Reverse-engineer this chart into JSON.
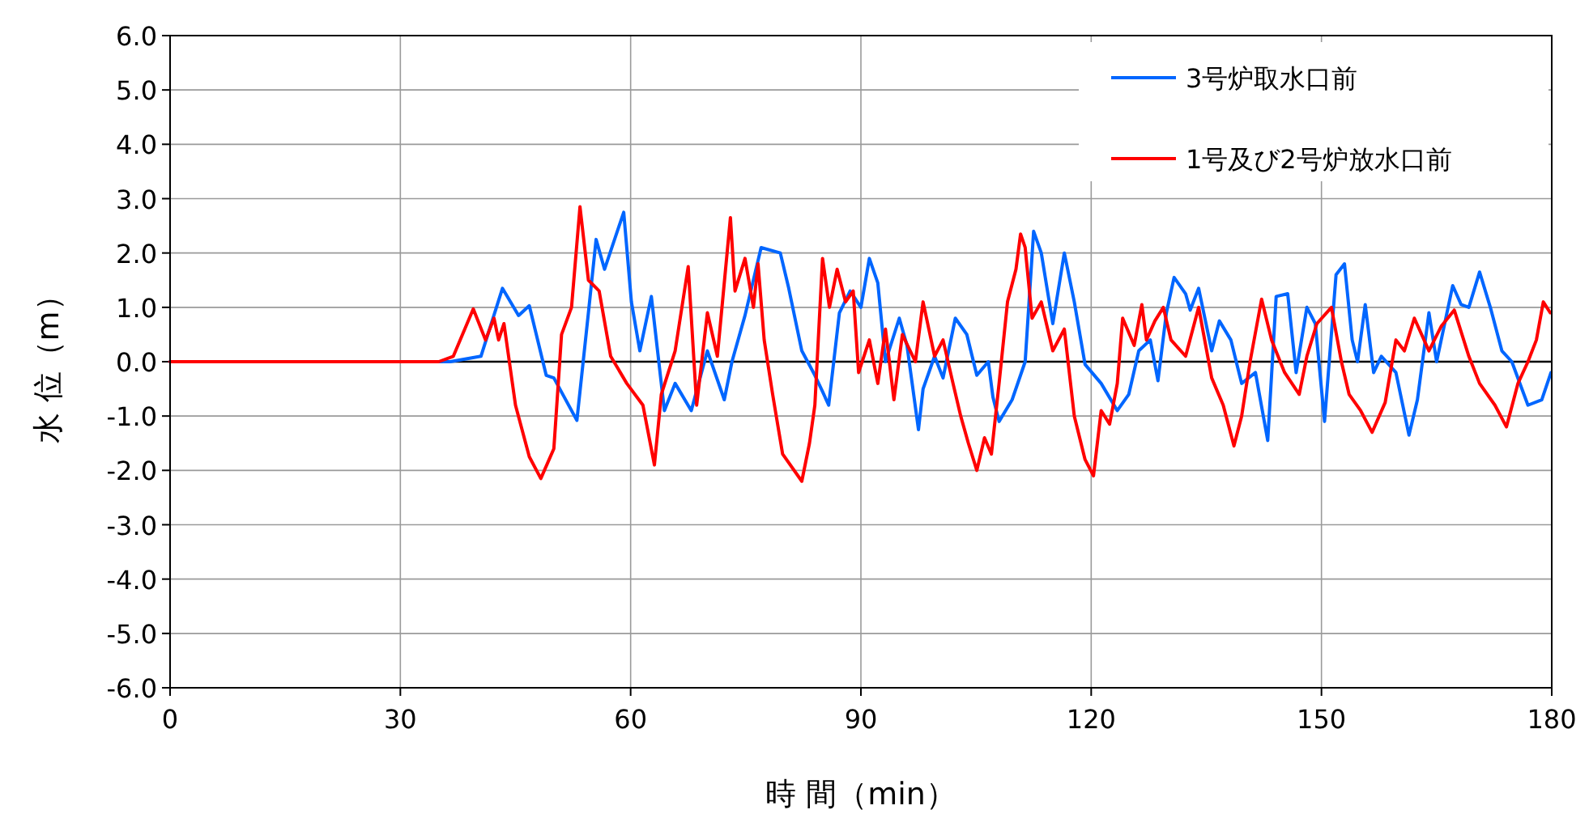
{
  "chart_data": {
    "type": "line",
    "xlabel": "時 間（min）",
    "ylabel": "水 位（m）",
    "xlim": [
      0,
      180
    ],
    "xticks": [
      0,
      30,
      60,
      90,
      120,
      150,
      180
    ],
    "ylim": [
      -6,
      6
    ],
    "yticks": [
      {
        "value": -6,
        "label": "-6.0"
      },
      {
        "value": -5,
        "label": "-5.0"
      },
      {
        "value": -4,
        "label": "-4.0"
      },
      {
        "value": -3,
        "label": "-3.0"
      },
      {
        "value": -2,
        "label": "-2.0"
      },
      {
        "value": -1,
        "label": "-1.0"
      },
      {
        "value": 0,
        "label": "0.0"
      },
      {
        "value": 1,
        "label": "1.0"
      },
      {
        "value": 2,
        "label": "2.0"
      },
      {
        "value": 3,
        "label": "3.0"
      },
      {
        "value": 4,
        "label": "4.0"
      },
      {
        "value": 5,
        "label": "5.0"
      },
      {
        "value": 6,
        "label": "6.0"
      }
    ],
    "grid": true,
    "legend": "top right",
    "line_style": "solid",
    "ref_lines": [
      {
        "axis": "y",
        "value": 0,
        "color": "#000000"
      }
    ],
    "series": [
      {
        "name": "3号炉取水口前",
        "color": "#0066ff",
        "x": [
          0,
          36.5,
          40.5,
          43.3,
          45.4,
          46.8,
          49,
          50,
          53,
          54.5,
          55.5,
          56.6,
          59.1,
          60.1,
          61.2,
          62.7,
          64.4,
          65.8,
          67.9,
          70,
          72.2,
          73.2,
          74.9,
          77,
          79.5,
          80.6,
          82.3,
          84,
          85,
          85.8,
          87.2,
          88.6,
          90,
          91.1,
          92.2,
          93.2,
          95,
          96,
          97.5,
          98.1,
          99.6,
          100.7,
          102.3,
          103.8,
          105.1,
          106.6,
          107.2,
          108,
          109.7,
          111.4,
          112.5,
          113.5,
          115,
          116.5,
          117.8,
          119.2,
          121.3,
          123.4,
          124.9,
          126.2,
          127.7,
          128.7,
          129.8,
          130.8,
          132.3,
          132.9,
          134,
          135.7,
          136.7,
          138.2,
          139.6,
          141.4,
          143,
          144.1,
          145.6,
          146.7,
          148.1,
          149.2,
          150.4,
          151.9,
          153,
          154,
          154.7,
          155.7,
          156.8,
          157.8,
          159.7,
          161.4,
          162.5,
          164,
          165,
          167.1,
          168.2,
          169.2,
          170.6,
          172,
          173.5,
          174.8,
          176.9,
          178.7,
          179.9
        ],
        "values": [
          0,
          0,
          0.1,
          1.35,
          0.85,
          1.03,
          -0.25,
          -0.3,
          -1.08,
          0.9,
          2.25,
          1.7,
          2.75,
          1.1,
          0.2,
          1.2,
          -0.9,
          -0.4,
          -0.9,
          0.2,
          -0.7,
          0,
          0.85,
          2.1,
          2.0,
          1.35,
          0.2,
          -0.25,
          -0.55,
          -0.8,
          0.9,
          1.3,
          1.0,
          1.9,
          1.45,
          0,
          0.8,
          0.3,
          -1.25,
          -0.5,
          0.1,
          -0.3,
          0.8,
          0.5,
          -0.25,
          0,
          -0.65,
          -1.1,
          -0.7,
          0,
          2.4,
          2.0,
          0.7,
          2.0,
          1.1,
          -0.05,
          -0.4,
          -0.9,
          -0.6,
          0.2,
          0.4,
          -0.35,
          0.9,
          1.55,
          1.25,
          0.95,
          1.35,
          0.2,
          0.75,
          0.4,
          -0.4,
          -0.2,
          -1.45,
          1.2,
          1.25,
          -0.2,
          1.0,
          0.7,
          -1.1,
          1.6,
          1.8,
          0.4,
          0,
          1.05,
          -0.2,
          0.1,
          -0.2,
          -1.35,
          -0.7,
          0.9,
          0,
          1.4,
          1.05,
          1.0,
          1.65,
          1.0,
          0.2,
          0,
          -0.8,
          -0.7,
          -0.2
        ]
      },
      {
        "name": "1号及び2号炉放水口前",
        "color": "#ff0000",
        "x": [
          0,
          35,
          36.9,
          39.5,
          41.1,
          42.2,
          42.8,
          43.5,
          45,
          46.8,
          48.3,
          50,
          51,
          52.3,
          53.4,
          54.5,
          55.9,
          57.4,
          59.5,
          61.6,
          63.1,
          64,
          65.8,
          67.5,
          68.6,
          70,
          71.3,
          73,
          73.6,
          74.9,
          76,
          76.6,
          77.4,
          78.5,
          79.8,
          82.3,
          83.3,
          84,
          85,
          85.9,
          86.9,
          88,
          89,
          89.7,
          91.1,
          92.2,
          93.2,
          94.3,
          95.4,
          97.1,
          98.1,
          99.6,
          100.7,
          102,
          103,
          104,
          105.1,
          106.1,
          107,
          108,
          109.1,
          110.2,
          110.8,
          111.4,
          112.3,
          113.5,
          115,
          116.5,
          117.8,
          119.2,
          120.3,
          121.3,
          122.4,
          123.4,
          124.1,
          125.6,
          126.6,
          127.2,
          128.3,
          129.4,
          130.4,
          132.3,
          134,
          135.7,
          137.2,
          138.6,
          139.6,
          140.7,
          142.2,
          143.5,
          145.2,
          147.1,
          148.1,
          149.4,
          151.3,
          152.6,
          153.6,
          155.1,
          156.6,
          158.3,
          159.7,
          160.8,
          162.1,
          164,
          165.6,
          167.3,
          169.2,
          170.6,
          172.6,
          174.1,
          175.6,
          176.9,
          178,
          178.9,
          179.8
        ],
        "values": [
          0,
          0,
          0.1,
          0.97,
          0.4,
          0.8,
          0.4,
          0.7,
          -0.8,
          -1.75,
          -2.15,
          -1.6,
          0.5,
          1.0,
          2.85,
          1.5,
          1.3,
          0.1,
          -0.4,
          -0.8,
          -1.9,
          -0.6,
          0.2,
          1.75,
          -0.8,
          0.9,
          0.1,
          2.65,
          1.3,
          1.9,
          1.0,
          1.8,
          0.4,
          -0.6,
          -1.7,
          -2.2,
          -1.5,
          -0.8,
          1.9,
          1.0,
          1.7,
          1.1,
          1.3,
          -0.2,
          0.4,
          -0.4,
          0.6,
          -0.7,
          0.5,
          0,
          1.1,
          0.1,
          0.4,
          -0.4,
          -1.0,
          -1.5,
          -2.0,
          -1.4,
          -1.7,
          -0.4,
          1.1,
          1.7,
          2.35,
          2.1,
          0.8,
          1.1,
          0.2,
          0.6,
          -1.0,
          -1.8,
          -2.1,
          -0.9,
          -1.15,
          -0.4,
          0.8,
          0.3,
          1.05,
          0.4,
          0.75,
          1.0,
          0.4,
          0.1,
          1.0,
          -0.3,
          -0.8,
          -1.55,
          -1.0,
          0,
          1.15,
          0.4,
          -0.2,
          -0.6,
          0.1,
          0.7,
          1.0,
          0,
          -0.6,
          -0.9,
          -1.3,
          -0.75,
          0.4,
          0.2,
          0.8,
          0.2,
          0.65,
          0.95,
          0.1,
          -0.4,
          -0.8,
          -1.2,
          -0.4,
          0,
          0.4,
          1.1,
          0.9
        ]
      }
    ]
  }
}
